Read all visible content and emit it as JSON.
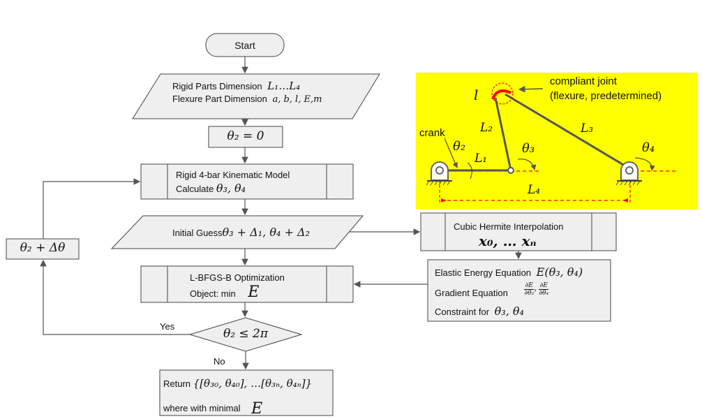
{
  "flowchart": {
    "start": "Start",
    "input_line1_text": "Rigid Parts Dimension",
    "input_line1_math": "L₁…L₄",
    "input_line2_text": "Flexure Part Dimension",
    "input_line2_math": "a, b, l, E,m",
    "init": "θ₂ = 0",
    "kinematic_title": "Rigid 4-bar Kinematic Model",
    "kinematic_calc_text": "Calculate",
    "kinematic_calc_math": "θ₃, θ₄",
    "guess_text": "Initial Guess",
    "guess_math": "θ₃ + Δ₁, θ₄ + Δ₂",
    "optim_title": "L-BFGS-B Optimization",
    "optim_object_text": "Object: min",
    "optim_object_math": "E",
    "decision": "θ₂ ≤ 2π",
    "yes": "Yes",
    "no": "No",
    "increment": "θ₂ + Δθ",
    "return_text": "Return",
    "return_math": "{[θ₃₀, θ₄₀], …[θ₃ₙ, θ₄ₙ]}",
    "where_text": "where with minimal",
    "where_math": "E",
    "hermite_title": "Cubic Hermite Interpolation",
    "hermite_math": "x₀, … xₙ",
    "energy_text": "Elastic Energy Equation",
    "energy_math": "E(θ₃, θ₄)",
    "gradient_text": "Gradient Equation",
    "gradient_math1_num": "∂E",
    "gradient_math1_den": "∂θ₃",
    "gradient_math2_num": "∂E",
    "gradient_math2_den": "∂θ₄",
    "constraint_text": "Constraint for",
    "constraint_math": "θ₃, θ₄"
  },
  "linkage": {
    "background_color": "#ffff00",
    "compliant_joint_line1": "compliant joint",
    "compliant_joint_line2": "(flexure, predetermined)",
    "l": "l",
    "crank": "crank",
    "L1": "L₁",
    "L2": "L₂",
    "L3": "L₃",
    "L4": "L₄",
    "theta2": "θ₂",
    "theta3": "θ₃",
    "theta4": "θ₄",
    "joint_color": "#ff0000"
  }
}
